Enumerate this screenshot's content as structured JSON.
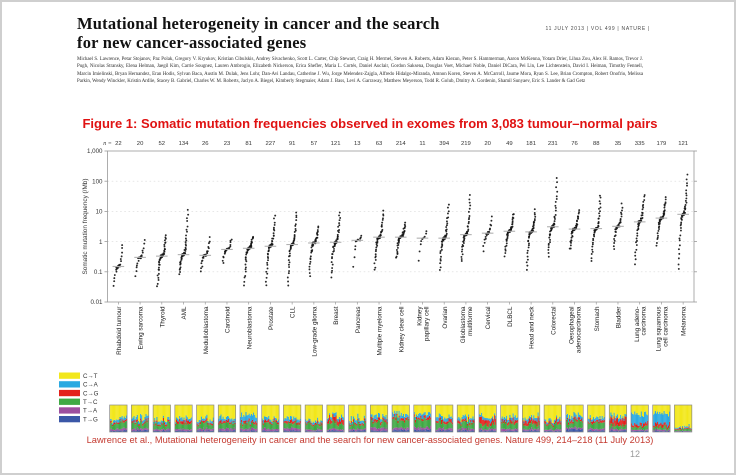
{
  "slide": {
    "title": "Mutational heterogeneity in cancer and the search\nfor new cancer-associated genes",
    "journal_header": "11 JULY 2013 | VOL 499 | NATURE |",
    "authors": "Michael S. Lawrence, Petar Stojanov, Paz Polak, Gregory V. Kryukov, Kristian Cibulskis, Andrey Sivachenko, Scott L. Carter, Chip Stewart, Craig H. Mermel, Steven A. Roberts, Adam Kiezun, Peter S. Hammerman, Aaron McKenna, Yotam Drier, Lihua Zou, Alex H. Ramos, Trevor J. Pugh, Nicolas Stransky, Elena Helman, Jaegil Kim, Carrie Sougnez, Lauren Ambrogio, Elizabeth Nickerson, Erica Shefler, Maria L. Cortés, Daniel Auclair, Gordon Saksena, Douglas Voet, Michael Noble, Daniel DiCara, Pei Lin, Lee Lichtenstein, David I. Heiman, Timothy Fennell, Marcin Imielinski, Bryan Hernandez, Eran Hodis, Sylvan Baca, Austin M. Dulak, Jens Lohr, Dan-Avi Landau, Catherine J. Wu, Jorge Melendez-Zajgla, Alfredo Hidalgo-Miranda, Amnon Koren, Steven A. McCarroll, Jaume Mora, Ryan S. Lee, Brian Crompton, Robert Onofrio, Melissa Parkin, Wendy Winckler, Kristin Ardlie, Stacey B. Gabriel, Charles W. M. Roberts, Jaclyn A. Biegel, Kimberly Stegmaier, Adam J. Bass, Levi A. Garraway, Matthew Meyerson, Todd R. Golub, Dmitry A. Gordenin, Shamil Sunyaev, Eric S. Lander & Gad Getz",
    "figure_caption": "Figure 1: Somatic mutation frequencies observed in exomes from 3,083 tumour–normal pairs",
    "citation": "Lawrence et al., Mutational heterogeneity in cancer and the search for new cancer-associated genes. Nature 499, 214–218 (11 July 2013)",
    "page_number": "12"
  },
  "chart_data": {
    "type": "scatter",
    "title": "",
    "ylabel": "Somatic mutation frequency (/Mb)",
    "yticks": [
      "1,000",
      "100",
      "10",
      "1",
      "0.1",
      "0.01"
    ],
    "ylim_log10": [
      -2,
      3
    ],
    "n_prefix": "n =",
    "grid": "dashed-horizontal-decades",
    "legend_position": "bottom-left",
    "dot_color": "#161616",
    "median_color": "#b0b0b0",
    "legend": [
      {
        "label": "C→T",
        "color": "#F2E71C"
      },
      {
        "label": "C→A",
        "color": "#2BA9E1"
      },
      {
        "label": "C→G",
        "color": "#E3211C"
      },
      {
        "label": "T→C",
        "color": "#3FA944"
      },
      {
        "label": "T→A",
        "color": "#9C4F9F"
      },
      {
        "label": "T→G",
        "color": "#3A57A7"
      }
    ],
    "categories": [
      {
        "label": "Rhabdoid tumour",
        "n": 22,
        "median": 0.15,
        "min": 0.03,
        "max": 1.0,
        "spectrum": [
          0.52,
          0.1,
          0.06,
          0.21,
          0.06,
          0.05
        ]
      },
      {
        "label": "Ewing sarcoma",
        "n": 20,
        "median": 0.3,
        "min": 0.06,
        "max": 1.3,
        "spectrum": [
          0.5,
          0.12,
          0.06,
          0.21,
          0.06,
          0.05
        ]
      },
      {
        "label": "Thyroid",
        "n": 52,
        "median": 0.33,
        "min": 0.03,
        "max": 1.9,
        "spectrum": [
          0.55,
          0.09,
          0.07,
          0.18,
          0.06,
          0.05
        ]
      },
      {
        "label": "AML",
        "n": 134,
        "median": 0.37,
        "min": 0.08,
        "max": 14,
        "spectrum": [
          0.48,
          0.1,
          0.1,
          0.21,
          0.06,
          0.05
        ]
      },
      {
        "label": "Medulloblastoma",
        "n": 26,
        "median": 0.35,
        "min": 0.09,
        "max": 1.5,
        "spectrum": [
          0.54,
          0.1,
          0.06,
          0.19,
          0.06,
          0.05
        ]
      },
      {
        "label": "Carcinoid",
        "n": 23,
        "median": 0.55,
        "min": 0.17,
        "max": 1.3,
        "spectrum": [
          0.48,
          0.12,
          0.07,
          0.21,
          0.07,
          0.05
        ]
      },
      {
        "label": "Neuroblastoma",
        "n": 81,
        "median": 0.6,
        "min": 0.03,
        "max": 1.6,
        "spectrum": [
          0.38,
          0.24,
          0.08,
          0.18,
          0.07,
          0.05
        ]
      },
      {
        "label": "Prostate",
        "n": 227,
        "median": 0.7,
        "min": 0.03,
        "max": 8,
        "spectrum": [
          0.49,
          0.1,
          0.08,
          0.22,
          0.06,
          0.05
        ]
      },
      {
        "label": "CLL",
        "n": 91,
        "median": 0.8,
        "min": 0.03,
        "max": 11,
        "spectrum": [
          0.46,
          0.12,
          0.08,
          0.21,
          0.08,
          0.05
        ]
      },
      {
        "label": "Low-grade glioma",
        "n": 57,
        "median": 0.9,
        "min": 0.06,
        "max": 3.5,
        "spectrum": [
          0.56,
          0.08,
          0.06,
          0.21,
          0.05,
          0.04
        ]
      },
      {
        "label": "Breast",
        "n": 121,
        "median": 0.95,
        "min": 0.06,
        "max": 11,
        "spectrum": [
          0.44,
          0.1,
          0.15,
          0.2,
          0.06,
          0.05
        ]
      },
      {
        "label": "Pancreas",
        "n": 13,
        "median": 1.1,
        "min": 0.1,
        "max": 1.7,
        "spectrum": [
          0.53,
          0.12,
          0.06,
          0.18,
          0.06,
          0.05
        ]
      },
      {
        "label": "Multiple myeloma",
        "n": 63,
        "median": 1.4,
        "min": 0.1,
        "max": 11,
        "spectrum": [
          0.45,
          0.12,
          0.08,
          0.22,
          0.08,
          0.05
        ]
      },
      {
        "label": "Kidney clear cell",
        "n": 214,
        "median": 1.4,
        "min": 0.25,
        "max": 4.5,
        "spectrum": [
          0.34,
          0.13,
          0.08,
          0.3,
          0.08,
          0.07
        ]
      },
      {
        "label": "Kidney\npapillary cell",
        "n": 11,
        "median": 1.3,
        "min": 0.15,
        "max": 2.6,
        "spectrum": [
          0.37,
          0.12,
          0.08,
          0.28,
          0.08,
          0.07
        ]
      },
      {
        "label": "Ovarian",
        "n": 394,
        "median": 1.3,
        "min": 0.1,
        "max": 20,
        "spectrum": [
          0.44,
          0.12,
          0.11,
          0.2,
          0.07,
          0.06
        ]
      },
      {
        "label": "Glioblastoma\nmultiforme",
        "n": 219,
        "median": 1.7,
        "min": 0.2,
        "max": 40,
        "spectrum": [
          0.5,
          0.1,
          0.08,
          0.21,
          0.06,
          0.05
        ]
      },
      {
        "label": "Cervical",
        "n": 20,
        "median": 1.9,
        "min": 0.4,
        "max": 8,
        "spectrum": [
          0.44,
          0.1,
          0.18,
          0.17,
          0.06,
          0.05
        ]
      },
      {
        "label": "DLBCL",
        "n": 49,
        "median": 2.2,
        "min": 0.3,
        "max": 9,
        "spectrum": [
          0.44,
          0.12,
          0.1,
          0.21,
          0.08,
          0.05
        ]
      },
      {
        "label": "Head and neck",
        "n": 181,
        "median": 2.1,
        "min": 0.1,
        "max": 12,
        "spectrum": [
          0.44,
          0.12,
          0.15,
          0.17,
          0.06,
          0.06
        ]
      },
      {
        "label": "Colorectal",
        "n": 231,
        "median": 3.1,
        "min": 0.3,
        "max": 150,
        "spectrum": [
          0.55,
          0.08,
          0.08,
          0.2,
          0.05,
          0.04
        ]
      },
      {
        "label": "Oesophageal\nadenocarcinoma",
        "n": 76,
        "median": 2.6,
        "min": 0.5,
        "max": 12,
        "spectrum": [
          0.4,
          0.14,
          0.08,
          0.22,
          0.06,
          0.1
        ]
      },
      {
        "label": "Stomach",
        "n": 88,
        "median": 2.7,
        "min": 0.2,
        "max": 40,
        "spectrum": [
          0.49,
          0.11,
          0.08,
          0.21,
          0.06,
          0.05
        ]
      },
      {
        "label": "Bladder",
        "n": 35,
        "median": 3.2,
        "min": 0.5,
        "max": 20,
        "spectrum": [
          0.44,
          0.1,
          0.2,
          0.15,
          0.06,
          0.05
        ]
      },
      {
        "label": "Lung adeno-\ncarcinoma",
        "n": 335,
        "median": 4.5,
        "min": 0.15,
        "max": 40,
        "spectrum": [
          0.34,
          0.36,
          0.1,
          0.12,
          0.04,
          0.04
        ]
      },
      {
        "label": "Lung squamous\ncell carcinoma",
        "n": 179,
        "median": 6.0,
        "min": 0.7,
        "max": 30,
        "spectrum": [
          0.29,
          0.43,
          0.1,
          0.1,
          0.04,
          0.04
        ]
      },
      {
        "label": "Melanoma",
        "n": 121,
        "median": 8.0,
        "min": 0.1,
        "max": 180,
        "spectrum": [
          0.81,
          0.05,
          0.04,
          0.06,
          0.02,
          0.02
        ]
      }
    ]
  }
}
